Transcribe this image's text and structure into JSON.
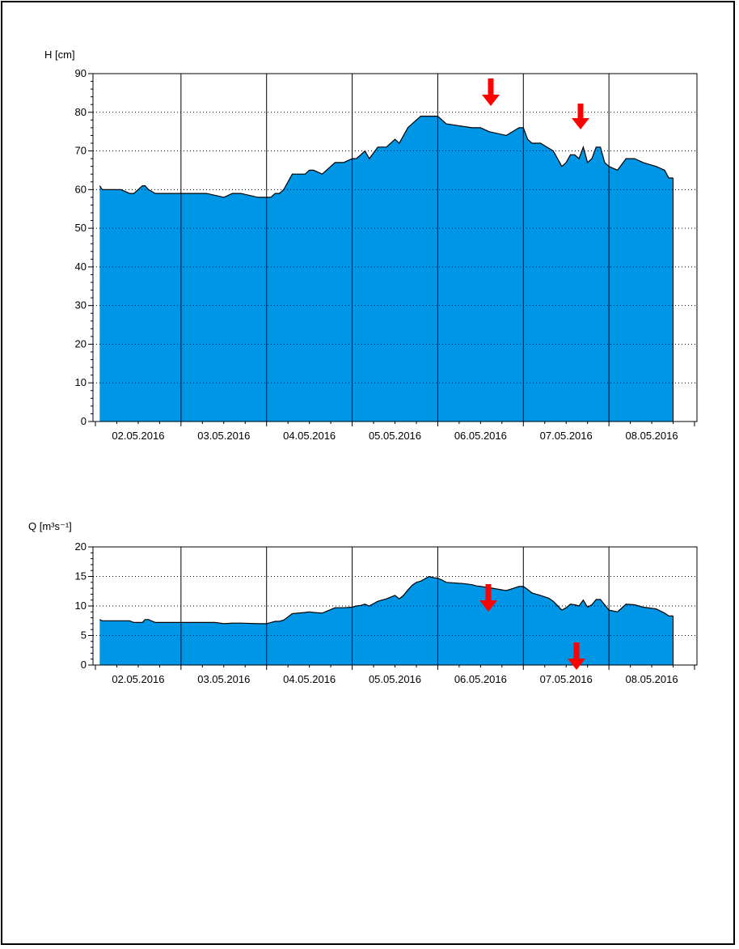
{
  "colors": {
    "fill": "#0096e6",
    "line": "#000000",
    "arrow": "#ff0000",
    "grid": "#000000"
  },
  "x_categories": [
    "02.05.2016",
    "03.05.2016",
    "04.05.2016",
    "05.05.2016",
    "06.05.2016",
    "07.05.2016",
    "08.05.2016"
  ],
  "chart_data": [
    {
      "type": "area",
      "title": "",
      "ylabel": "H [cm]",
      "xlabel": "",
      "ylim": [
        0,
        90
      ],
      "y_ticks": [
        0,
        10,
        20,
        30,
        40,
        50,
        60,
        70,
        80,
        90
      ],
      "x_tick_labels": [
        "02.05.2016",
        "03.05.2016",
        "04.05.2016",
        "05.05.2016",
        "06.05.2016",
        "07.05.2016",
        "08.05.2016"
      ],
      "grid": "horizontal dotted, vertical solid at day boundaries",
      "x_unit": "days since start of 02.05.2016",
      "x_range": [
        0,
        7
      ],
      "series": [
        {
          "x": [
            0.05,
            0.08,
            0.3,
            0.4,
            0.45,
            0.55,
            0.58,
            0.62,
            0.7,
            0.95,
            1.0,
            1.3,
            1.5,
            1.6,
            1.7,
            1.9,
            2.0,
            2.05,
            2.1,
            2.15,
            2.2,
            2.3,
            2.45,
            2.5,
            2.55,
            2.65,
            2.8,
            2.9,
            3.0,
            3.05,
            3.1,
            3.15,
            3.2,
            3.3,
            3.4,
            3.5,
            3.55,
            3.6,
            3.65,
            3.7,
            3.75,
            3.8,
            3.9,
            3.95,
            4.0,
            4.1,
            4.4,
            4.45,
            4.5,
            4.6,
            4.8,
            4.95,
            5.0,
            5.05,
            5.1,
            5.2,
            5.35,
            5.45,
            5.5,
            5.55,
            5.6,
            5.65,
            5.7,
            5.75,
            5.8,
            5.85,
            5.9,
            5.95,
            6.0,
            6.1,
            6.2,
            6.3,
            6.4,
            6.55,
            6.65,
            6.7,
            6.75
          ],
          "y": [
            61,
            60,
            60,
            59,
            59,
            61,
            61,
            60,
            59,
            59,
            59,
            59,
            58,
            59,
            59,
            58,
            58,
            58,
            59,
            59,
            60,
            64,
            64,
            65,
            65,
            64,
            67,
            67,
            68,
            68,
            69,
            70,
            68,
            71,
            71,
            73,
            72,
            74,
            76,
            77,
            78,
            79,
            79,
            79,
            79,
            77,
            76,
            76,
            76,
            75,
            74,
            76,
            76,
            73,
            72,
            72,
            70,
            66,
            67,
            69,
            69,
            68,
            71,
            67,
            68,
            71,
            71,
            67,
            66,
            65,
            68,
            68,
            67,
            66,
            65,
            63,
            63
          ]
        }
      ]
    },
    {
      "type": "area",
      "title": "",
      "ylabel": "Q [m³s⁻¹]",
      "xlabel": "",
      "ylim": [
        0,
        20
      ],
      "y_ticks": [
        0,
        5,
        10,
        15,
        20
      ],
      "x_tick_labels": [
        "02.05.2016",
        "03.05.2016",
        "04.05.2016",
        "05.05.2016",
        "06.05.2016",
        "07.05.2016",
        "08.05.2016"
      ],
      "grid": "horizontal dotted, vertical solid at day boundaries",
      "x_unit": "days since start of 02.05.2016",
      "x_range": [
        0,
        7
      ],
      "series": [
        {
          "x": [
            0.05,
            0.08,
            0.4,
            0.45,
            0.55,
            0.58,
            0.62,
            0.7,
            0.95,
            1.0,
            1.3,
            1.4,
            1.5,
            1.6,
            1.7,
            1.9,
            2.0,
            2.05,
            2.1,
            2.15,
            2.2,
            2.3,
            2.45,
            2.5,
            2.55,
            2.65,
            2.8,
            2.9,
            3.0,
            3.05,
            3.1,
            3.15,
            3.2,
            3.3,
            3.4,
            3.5,
            3.55,
            3.6,
            3.65,
            3.7,
            3.75,
            3.8,
            3.9,
            3.95,
            4.0,
            4.05,
            4.1,
            4.3,
            4.4,
            4.45,
            4.5,
            4.55,
            4.6,
            4.8,
            4.95,
            5.0,
            5.05,
            5.1,
            5.2,
            5.3,
            5.35,
            5.45,
            5.5,
            5.55,
            5.6,
            5.65,
            5.7,
            5.75,
            5.8,
            5.85,
            5.9,
            5.95,
            6.0,
            6.1,
            6.2,
            6.3,
            6.4,
            6.55,
            6.65,
            6.7,
            6.75
          ],
          "y": [
            7.7,
            7.5,
            7.5,
            7.2,
            7.2,
            7.7,
            7.7,
            7.2,
            7.2,
            7.2,
            7.2,
            7.2,
            7.0,
            7.1,
            7.1,
            7.0,
            7.0,
            7.2,
            7.4,
            7.4,
            7.6,
            8.7,
            8.9,
            9.0,
            8.9,
            8.8,
            9.7,
            9.7,
            9.8,
            10.0,
            10.1,
            10.3,
            10.0,
            10.8,
            11.2,
            11.8,
            11.2,
            11.8,
            12.7,
            13.5,
            14.0,
            14.2,
            15.0,
            14.8,
            14.7,
            14.4,
            14.0,
            13.8,
            13.6,
            13.4,
            13.3,
            13.2,
            13.1,
            12.6,
            13.3,
            13.3,
            12.8,
            12.2,
            11.8,
            11.3,
            10.8,
            9.3,
            9.7,
            10.3,
            10.2,
            10.0,
            11.0,
            9.8,
            10.2,
            11.1,
            11.1,
            10.2,
            9.3,
            9.0,
            10.3,
            10.2,
            9.8,
            9.5,
            8.8,
            8.3,
            8.3
          ]
        }
      ]
    }
  ]
}
